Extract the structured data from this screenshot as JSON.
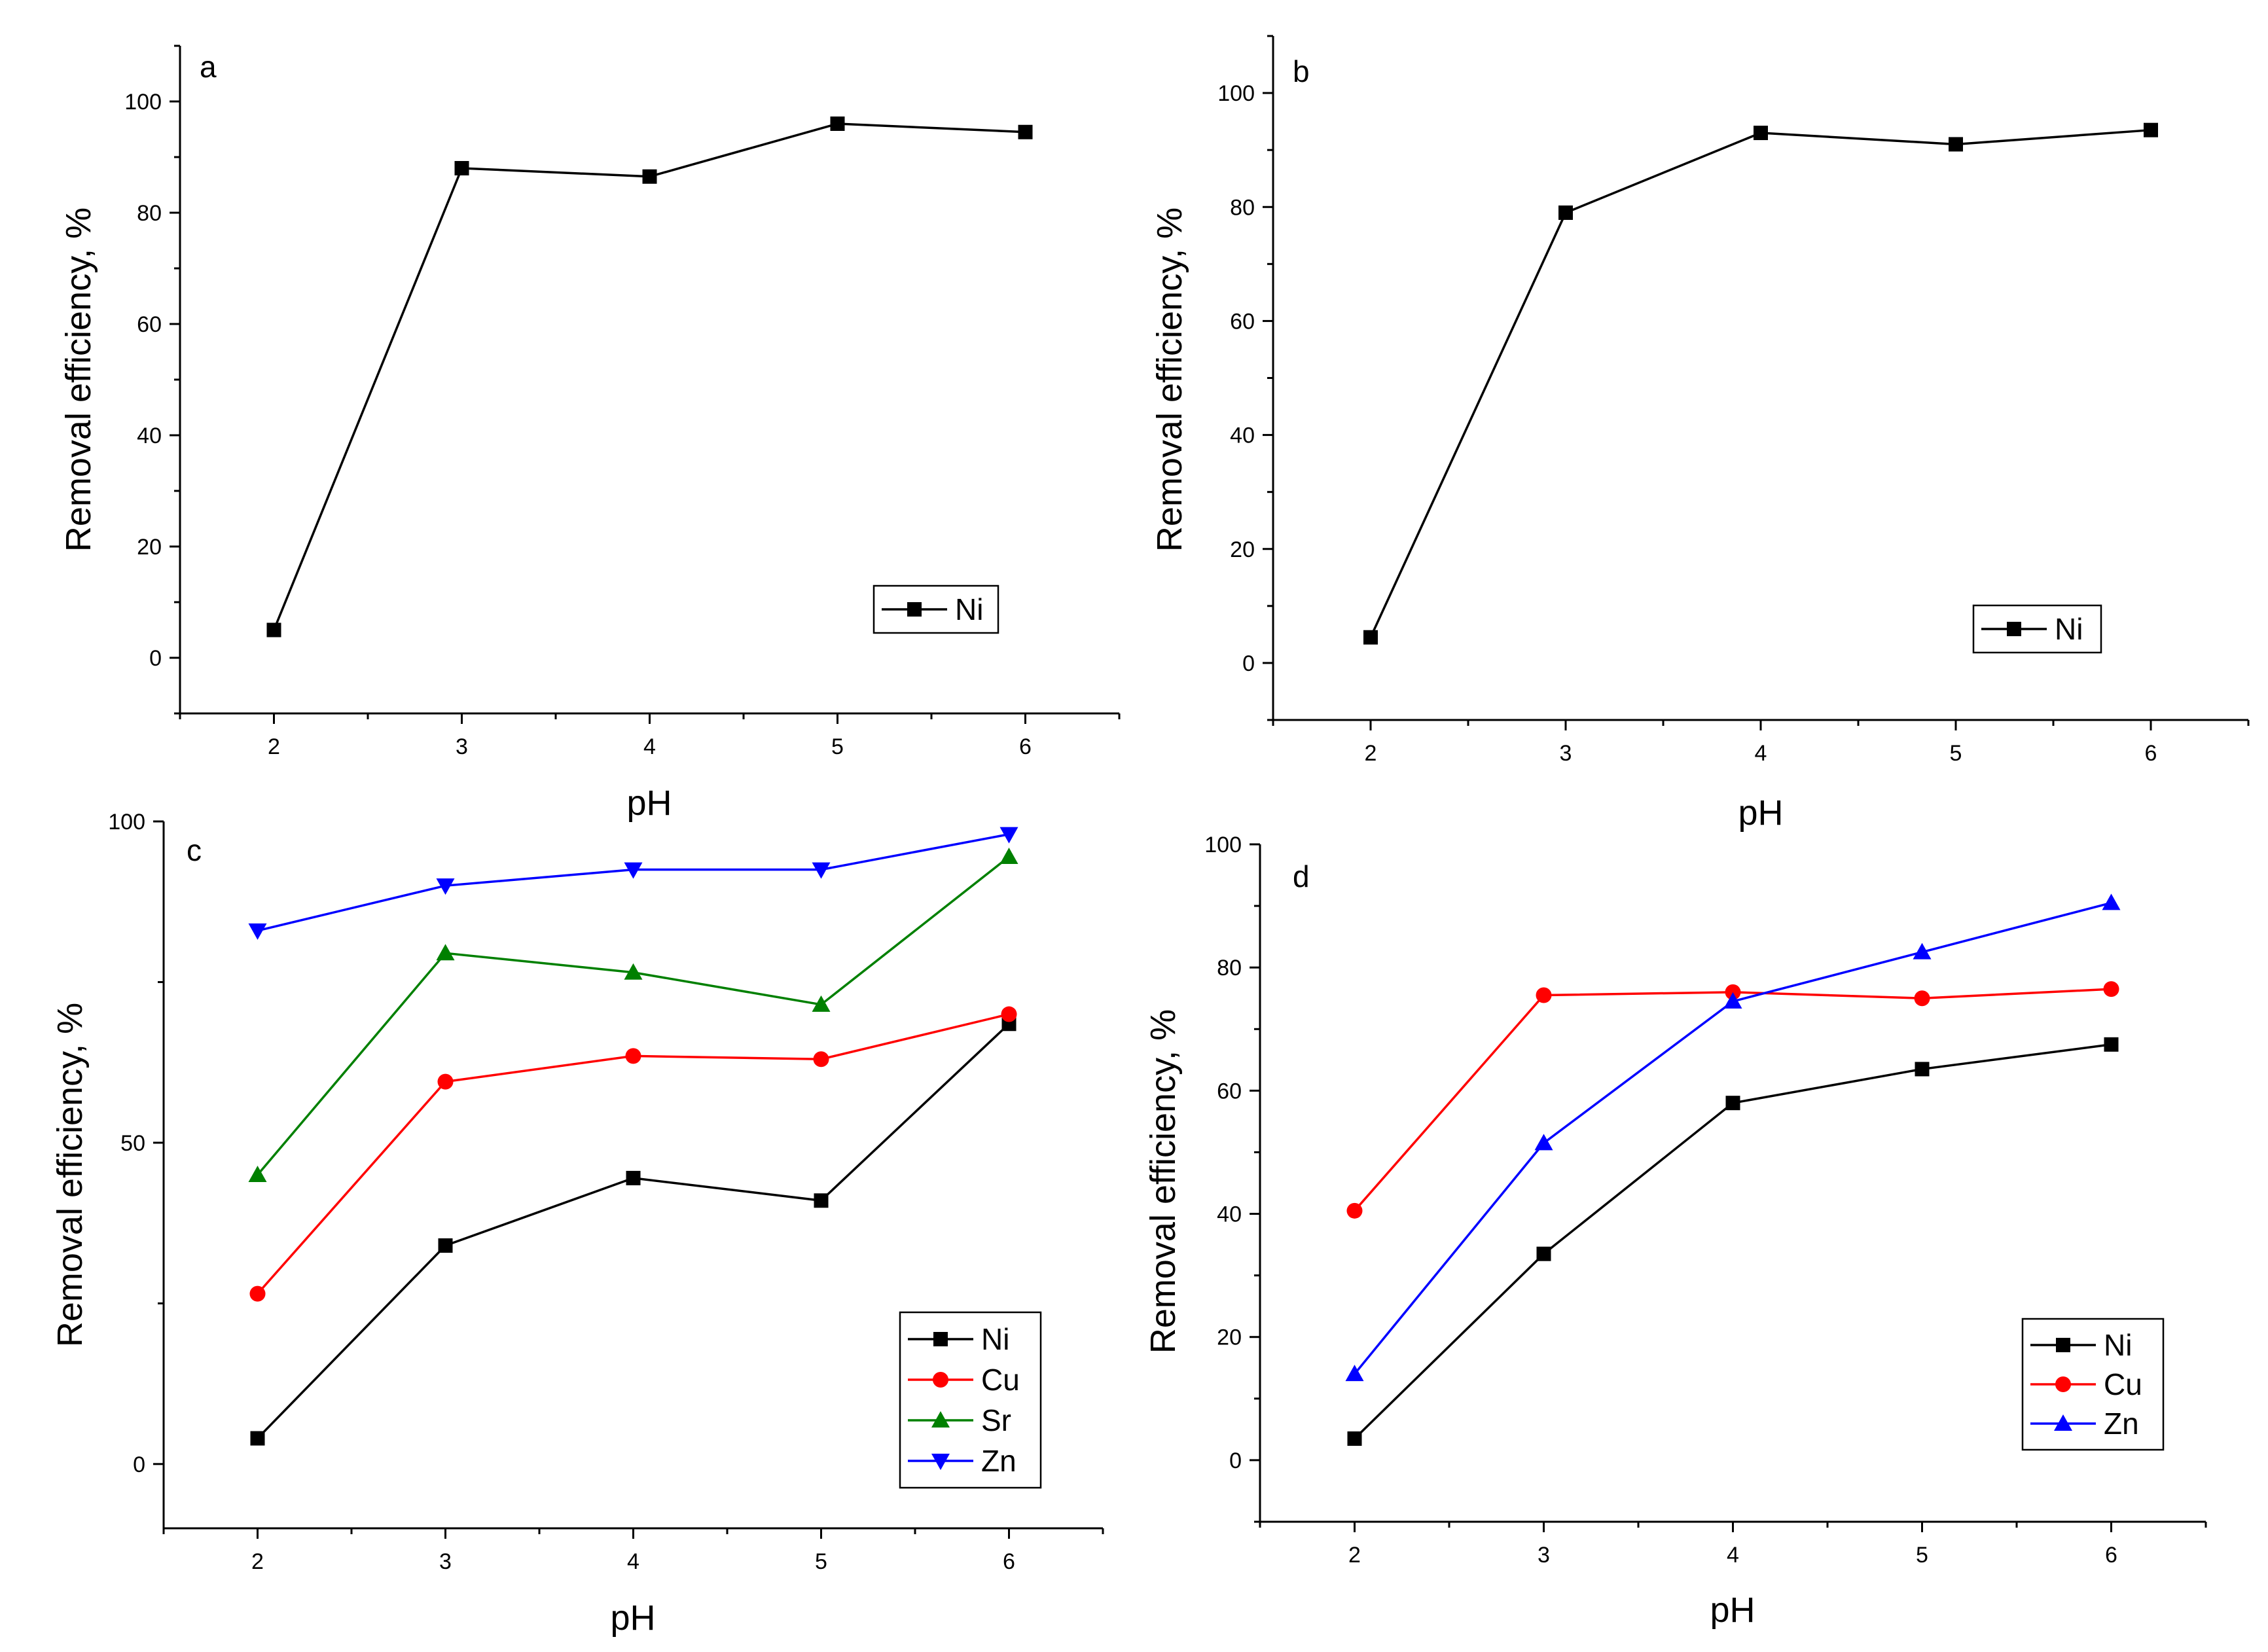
{
  "chart_data": [
    {
      "panel": "a",
      "type": "line",
      "xlabel": "pH",
      "ylabel": "Removal efficiency, %",
      "xlim": [
        1.5,
        6.5
      ],
      "ylim": [
        -10,
        110
      ],
      "xticks": [
        2,
        3,
        4,
        5,
        6
      ],
      "yticks": [
        0,
        20,
        40,
        60,
        80,
        100
      ],
      "legend_position": "bottom-right",
      "series": [
        {
          "name": "Ni",
          "color": "#000000",
          "marker": "square",
          "x": [
            2,
            3,
            4,
            5,
            6
          ],
          "values": [
            5,
            88,
            86.5,
            96,
            94.5
          ]
        }
      ]
    },
    {
      "panel": "b",
      "type": "line",
      "xlabel": "pH",
      "ylabel": "Removal efficiency, %",
      "xlim": [
        1.5,
        6.5
      ],
      "ylim": [
        -10,
        110
      ],
      "xticks": [
        2,
        3,
        4,
        5,
        6
      ],
      "yticks": [
        0,
        20,
        40,
        60,
        80,
        100
      ],
      "legend_position": "bottom-right",
      "series": [
        {
          "name": "Ni",
          "color": "#000000",
          "marker": "square",
          "x": [
            2,
            3,
            4,
            5,
            6
          ],
          "values": [
            4.5,
            79,
            93,
            91,
            93.5
          ]
        }
      ]
    },
    {
      "panel": "c",
      "type": "line",
      "xlabel": "pH",
      "ylabel": "Removal efficiency, %",
      "xlim": [
        1.5,
        6.5
      ],
      "ylim": [
        -10,
        100
      ],
      "xticks": [
        2,
        3,
        4,
        5,
        6
      ],
      "yticks": [
        0,
        50,
        100
      ],
      "legend_position": "bottom-right",
      "series": [
        {
          "name": "Ni",
          "color": "#000000",
          "marker": "square",
          "x": [
            2,
            3,
            4,
            5,
            6
          ],
          "values": [
            4,
            34,
            44.5,
            41,
            68.5
          ]
        },
        {
          "name": "Cu",
          "color": "#ff0000",
          "marker": "circle",
          "x": [
            2,
            3,
            4,
            5,
            6
          ],
          "values": [
            26.5,
            59.5,
            63.5,
            63,
            70
          ]
        },
        {
          "name": "Sr",
          "color": "#008000",
          "marker": "triangle-up",
          "x": [
            2,
            3,
            4,
            5,
            6
          ],
          "values": [
            45,
            79.5,
            76.5,
            71.5,
            94.5
          ]
        },
        {
          "name": "Zn",
          "color": "#0000ff",
          "marker": "triangle-down",
          "x": [
            2,
            3,
            4,
            5,
            6
          ],
          "values": [
            83,
            90,
            92.5,
            92.5,
            98
          ]
        }
      ]
    },
    {
      "panel": "d",
      "type": "line",
      "xlabel": "pH",
      "ylabel": "Removal efficiency, %",
      "xlim": [
        1.5,
        6.5
      ],
      "ylim": [
        -10,
        100
      ],
      "xticks": [
        2,
        3,
        4,
        5,
        6
      ],
      "yticks": [
        0,
        20,
        40,
        60,
        80,
        100
      ],
      "legend_position": "bottom-right",
      "series": [
        {
          "name": "Ni",
          "color": "#000000",
          "marker": "square",
          "x": [
            2,
            3,
            4,
            5,
            6
          ],
          "values": [
            3.5,
            33.5,
            58,
            63.5,
            67.5
          ]
        },
        {
          "name": "Cu",
          "color": "#ff0000",
          "marker": "circle",
          "x": [
            2,
            3,
            4,
            5,
            6
          ],
          "values": [
            40.5,
            75.5,
            76,
            75,
            76.5
          ]
        },
        {
          "name": "Zn",
          "color": "#0000ff",
          "marker": "triangle-up",
          "x": [
            2,
            3,
            4,
            5,
            6
          ],
          "values": [
            14,
            51.5,
            74.5,
            82.5,
            90.5
          ]
        }
      ]
    }
  ]
}
